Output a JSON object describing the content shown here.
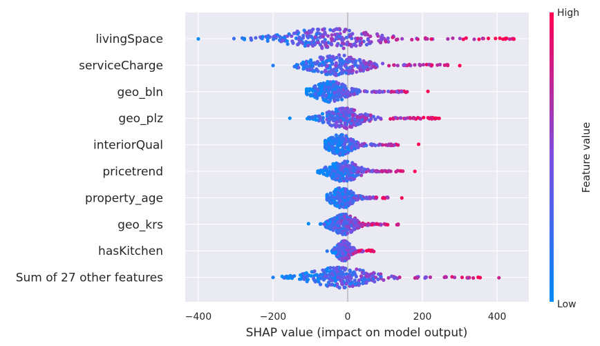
{
  "chart_data": {
    "type": "scatter",
    "subtype": "shap-beeswarm",
    "title": "",
    "xlabel": "SHAP value (impact on model output)",
    "ylabel": "",
    "xlim": [
      -435,
      485
    ],
    "xticks": [
      -400,
      -200,
      0,
      200,
      400
    ],
    "xtick_labels": [
      "−400",
      "−200",
      "0",
      "200",
      "400"
    ],
    "grid": true,
    "features": [
      {
        "name": "livingSpace",
        "min": -400,
        "max": 445,
        "center": -50,
        "spread": 160
      },
      {
        "name": "serviceCharge",
        "min": -200,
        "max": 300,
        "center": -30,
        "spread": 100
      },
      {
        "name": "geo_bln",
        "min": -110,
        "max": 215,
        "center": -45,
        "spread": 60
      },
      {
        "name": "geo_plz",
        "min": -155,
        "max": 245,
        "center": -10,
        "spread": 70
      },
      {
        "name": "interiorQual",
        "min": -60,
        "max": 190,
        "center": -20,
        "spread": 45
      },
      {
        "name": "pricetrend",
        "min": -80,
        "max": 180,
        "center": -10,
        "spread": 55
      },
      {
        "name": "property_age",
        "min": -55,
        "max": 145,
        "center": -15,
        "spread": 40
      },
      {
        "name": "geo_krs",
        "min": -105,
        "max": 135,
        "center": -10,
        "spread": 45
      },
      {
        "name": "hasKitchen",
        "min": -55,
        "max": 70,
        "center": -10,
        "spread": 25
      },
      {
        "name": "Sum of 27 other features",
        "min": -200,
        "max": 405,
        "center": -20,
        "spread": 110
      }
    ],
    "colorbar": {
      "label": "Feature value",
      "high_label": "High",
      "low_label": "Low",
      "high_color": "#ff0052",
      "low_color": "#008bfb"
    }
  }
}
